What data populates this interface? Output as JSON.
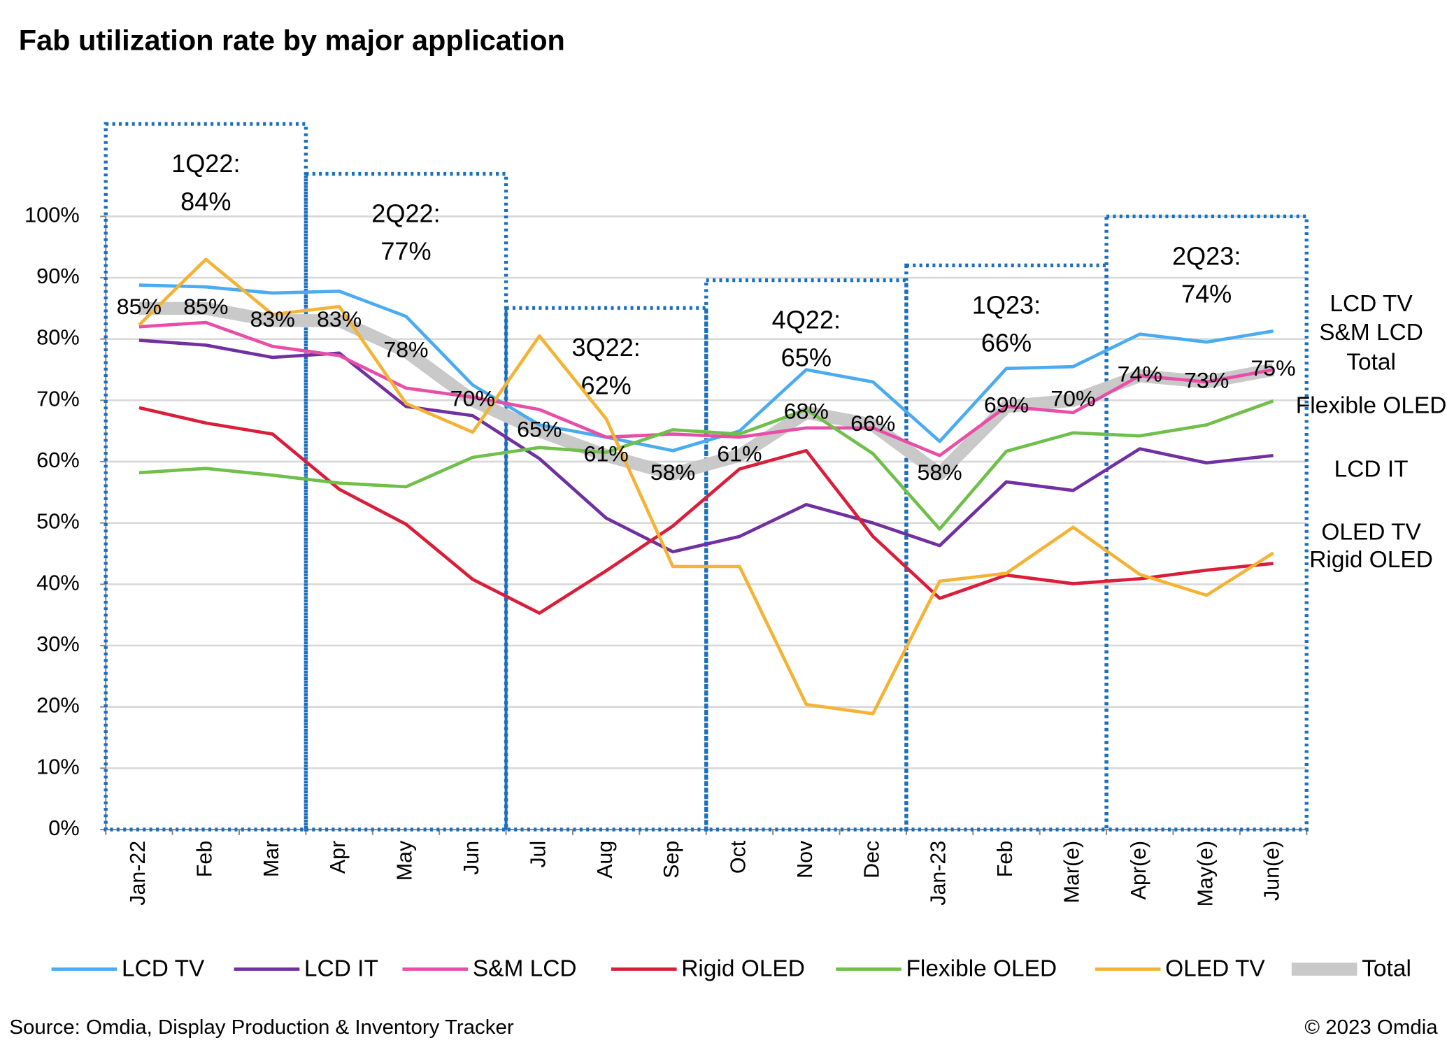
{
  "chart_data": {
    "type": "line",
    "title": "Fab utilization rate by major application",
    "categories": [
      "Jan-22",
      "Feb",
      "Mar",
      "Apr",
      "May",
      "Jun",
      "Jul",
      "Aug",
      "Sep",
      "Oct",
      "Nov",
      "Dec",
      "Jan-23",
      "Feb",
      "Mar(e)",
      "Apr(e)",
      "May(e)",
      "Jun(e)"
    ],
    "ylim": [
      0,
      100
    ],
    "yticks": [
      {
        "value": 0,
        "label": "0%"
      },
      {
        "value": 10,
        "label": "10%"
      },
      {
        "value": 20,
        "label": "20%"
      },
      {
        "value": 30,
        "label": "30%"
      },
      {
        "value": 40,
        "label": "40%"
      },
      {
        "value": 50,
        "label": "50%"
      },
      {
        "value": 60,
        "label": "60%"
      },
      {
        "value": 70,
        "label": "70%"
      },
      {
        "value": 80,
        "label": "80%"
      },
      {
        "value": 90,
        "label": "90%"
      },
      {
        "value": 100,
        "label": "100%"
      }
    ],
    "grid": true,
    "series": [
      {
        "name": "Total",
        "color": "#c9c9c9",
        "values": [
          85,
          85,
          83,
          83,
          78,
          70,
          65,
          61,
          58,
          61,
          68,
          66,
          58,
          69,
          70,
          74,
          73,
          75
        ],
        "value_labels": [
          "85%",
          "85%",
          "83%",
          "83%",
          "78%",
          "70%",
          "65%",
          "61%",
          "58%",
          "61%",
          "68%",
          "66%",
          "58%",
          "69%",
          "70%",
          "74%",
          "73%",
          "75%"
        ]
      },
      {
        "name": "LCD TV",
        "color": "#4aabf0",
        "values": [
          88.8,
          88.5,
          87.5,
          87.8,
          83.7,
          72.5,
          66,
          64,
          61.8,
          65,
          75,
          73,
          63.3,
          75.2,
          75.5,
          80.8,
          79.5,
          81.3
        ]
      },
      {
        "name": "LCD IT",
        "color": "#7030a0",
        "values": [
          79.8,
          79,
          77,
          77.7,
          69,
          67.5,
          60.5,
          50.8,
          45.3,
          47.8,
          53,
          50,
          46.3,
          56.7,
          55.3,
          62.1,
          59.8,
          61
        ]
      },
      {
        "name": "S&M LCD",
        "color": "#e84ea7",
        "values": [
          82,
          82.7,
          78.8,
          77.3,
          72,
          70.5,
          68.5,
          64,
          64.5,
          64,
          65.5,
          65.5,
          61,
          69,
          68,
          74,
          73,
          75
        ]
      },
      {
        "name": "Rigid OLED",
        "color": "#d91e3a",
        "values": [
          68.8,
          66.3,
          64.5,
          55.5,
          49.8,
          40.8,
          35.3,
          42.2,
          49.5,
          58.8,
          61.8,
          47.8,
          37.7,
          41.5,
          40.1,
          40.9,
          42.3,
          43.4
        ]
      },
      {
        "name": "Flexible OLED",
        "color": "#6fbf4a",
        "values": [
          58.2,
          58.9,
          57.8,
          56.5,
          55.9,
          60.7,
          62.3,
          61.5,
          65.2,
          64.5,
          68.5,
          61.3,
          49,
          61.7,
          64.7,
          64.2,
          66,
          69.9
        ]
      },
      {
        "name": "OLED TV",
        "color": "#f5b335",
        "values": [
          82.3,
          93,
          84,
          85.3,
          69.5,
          64.8,
          80.5,
          67,
          42.9,
          42.9,
          20.4,
          18.9,
          40.5,
          41.8,
          49.3,
          41.6,
          38.2,
          45.1
        ]
      }
    ],
    "quarters": [
      {
        "label": "1Q22:",
        "value": 84,
        "value_label": "84%"
      },
      {
        "label": "2Q22:",
        "value": 77,
        "value_label": "77%"
      },
      {
        "label": "3Q22:",
        "value": 62,
        "value_label": "62%"
      },
      {
        "label": "4Q22:",
        "value": 65,
        "value_label": "65%"
      },
      {
        "label": "1Q23:",
        "value": 66,
        "value_label": "66%"
      },
      {
        "label": "2Q23:",
        "value": 74,
        "value_label": "74%"
      }
    ],
    "source": "Source: Omdia, Display Production & Inventory Tracker",
    "copyright": "© 2023 Omdia"
  }
}
